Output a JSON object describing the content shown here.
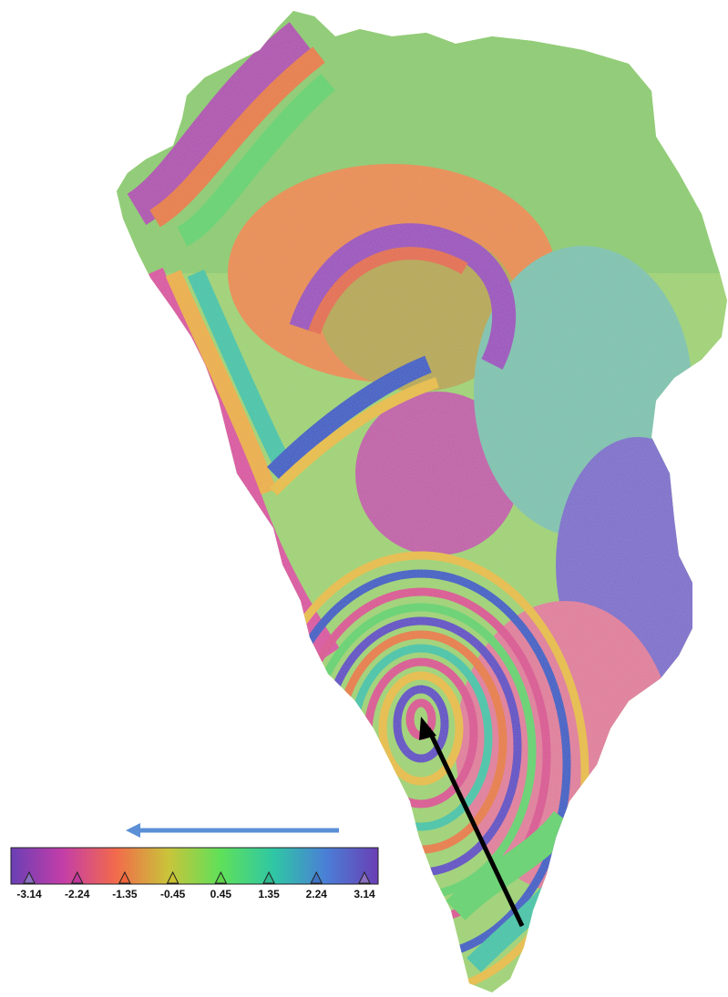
{
  "colorbar": {
    "stops": [
      "#6a3fb5",
      "#c43ea8",
      "#f26a4b",
      "#c9c43a",
      "#5fe05a",
      "#2fc7a4",
      "#4a7fd6",
      "#6a3fb5"
    ],
    "ticks": [
      {
        "label": "-3.14",
        "value": -3.14,
        "color": "#8a6fc0"
      },
      {
        "label": "-2.24",
        "value": -2.24,
        "color": "#c0389a"
      },
      {
        "label": "-1.35",
        "value": -1.35,
        "color": "#f0643a"
      },
      {
        "label": "-0.45",
        "value": -0.45,
        "color": "#c8c030"
      },
      {
        "label": "0.45",
        "value": 0.45,
        "color": "#5fd24a"
      },
      {
        "label": "1.35",
        "value": 1.35,
        "color": "#2fb890"
      },
      {
        "label": "2.24",
        "value": 2.24,
        "color": "#3f74c4"
      },
      {
        "label": "3.14",
        "value": 3.14,
        "color": "#8a6fc0"
      }
    ]
  },
  "indicators": {
    "direction_arrow_color": "#5b8fd6",
    "deformation_arrow_color": "#000000"
  }
}
